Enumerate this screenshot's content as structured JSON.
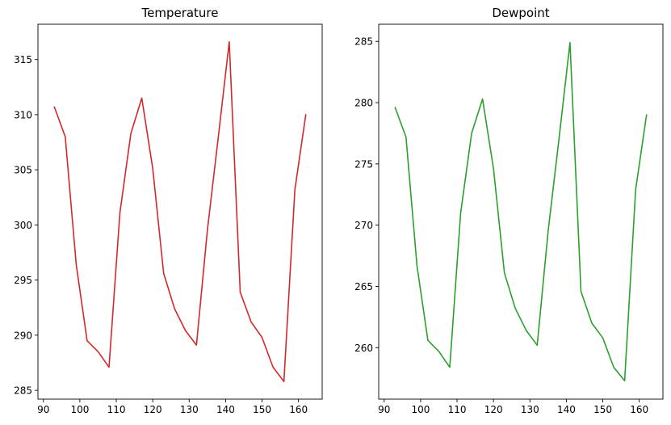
{
  "chart_data": [
    {
      "type": "line",
      "title": "Temperature",
      "xlabel": "",
      "ylabel": "",
      "xlim": [
        88.5,
        166.5
      ],
      "ylim": [
        284.2,
        318.2
      ],
      "xticks": [
        90,
        100,
        110,
        120,
        130,
        140,
        150,
        160
      ],
      "yticks": [
        285,
        290,
        295,
        300,
        305,
        310,
        315
      ],
      "grid": false,
      "legend": "none",
      "color": "#d62728",
      "series": [
        {
          "x": [
            93,
            96,
            99,
            102,
            105,
            108,
            111,
            114,
            117,
            120,
            123,
            126,
            129,
            132,
            135,
            138,
            141,
            144,
            147,
            150,
            153,
            156,
            159,
            162
          ],
          "y": [
            310.7,
            308.0,
            296.4,
            289.5,
            288.5,
            287.1,
            301.1,
            308.3,
            311.5,
            305.1,
            295.6,
            292.4,
            290.4,
            289.1,
            299.5,
            308.0,
            316.6,
            293.9,
            291.2,
            289.8,
            287.1,
            285.8,
            303.2,
            310.0
          ]
        }
      ]
    },
    {
      "type": "line",
      "title": "Dewpoint",
      "xlabel": "",
      "ylabel": "",
      "xlim": [
        88.5,
        166.5
      ],
      "ylim": [
        255.8,
        286.4
      ],
      "xticks": [
        90,
        100,
        110,
        120,
        130,
        140,
        150,
        160
      ],
      "yticks": [
        260,
        265,
        270,
        275,
        280,
        285
      ],
      "grid": false,
      "legend": "none",
      "color": "#2ca02c",
      "series": [
        {
          "x": [
            93,
            96,
            99,
            102,
            105,
            108,
            111,
            114,
            117,
            120,
            123,
            126,
            129,
            132,
            135,
            138,
            141,
            144,
            147,
            150,
            153,
            156,
            159,
            162
          ],
          "y": [
            279.6,
            277.2,
            266.7,
            260.6,
            259.7,
            258.4,
            271.0,
            277.5,
            280.3,
            274.6,
            266.1,
            263.2,
            261.4,
            260.2,
            269.5,
            277.1,
            284.9,
            264.6,
            262.0,
            260.8,
            258.4,
            257.3,
            272.9,
            279.0
          ]
        }
      ]
    }
  ]
}
